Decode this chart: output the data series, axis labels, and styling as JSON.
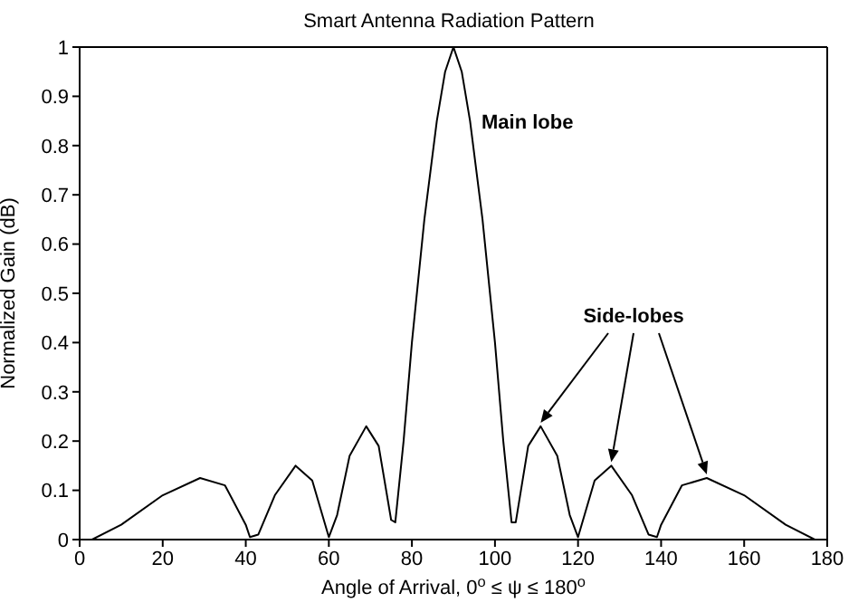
{
  "chart_data": {
    "type": "line",
    "title": "Smart Antenna Radiation Pattern",
    "xlabel": "Angle of Arrival, 0$^{o}$ ≤ ψ ≤ 180$^{o}$",
    "ylabel": "Normalized Gain (dB)",
    "x": [
      0,
      3,
      10,
      20,
      29,
      35,
      40,
      41,
      43,
      47,
      52,
      56,
      60,
      62,
      65,
      69,
      72,
      75,
      76,
      78,
      80,
      83,
      86,
      88,
      90,
      92,
      94,
      97,
      100,
      102,
      104,
      105,
      108,
      111,
      115,
      118,
      120,
      124,
      128,
      133,
      137,
      139,
      140,
      145,
      151,
      160,
      170,
      177,
      180
    ],
    "series": [
      {
        "color": "#000000",
        "values": [
          0,
          0,
          0.03,
          0.09,
          0.125,
          0.11,
          0.03,
          0.005,
          0.01,
          0.09,
          0.15,
          0.12,
          0.005,
          0.05,
          0.17,
          0.23,
          0.19,
          0.04,
          0.035,
          0.2,
          0.4,
          0.65,
          0.85,
          0.95,
          1,
          0.95,
          0.85,
          0.65,
          0.4,
          0.2,
          0.035,
          0.035,
          0.19,
          0.23,
          0.17,
          0.05,
          0.005,
          0.12,
          0.15,
          0.09,
          0.01,
          0.005,
          0.03,
          0.11,
          0.125,
          0.09,
          0.03,
          0,
          0
        ]
      }
    ],
    "xlim": [
      0,
      180
    ],
    "xticks": [
      0,
      20,
      40,
      60,
      80,
      100,
      120,
      140,
      160,
      180
    ],
    "ylim": [
      0,
      1
    ],
    "yticks": [
      0,
      0.1,
      0.2,
      0.3,
      0.4,
      0.5,
      0.6,
      0.7,
      0.8,
      0.9,
      1
    ],
    "marker": "none",
    "line_style": "solid",
    "annotations": [
      "Main lobe",
      "Side-lobes"
    ]
  }
}
